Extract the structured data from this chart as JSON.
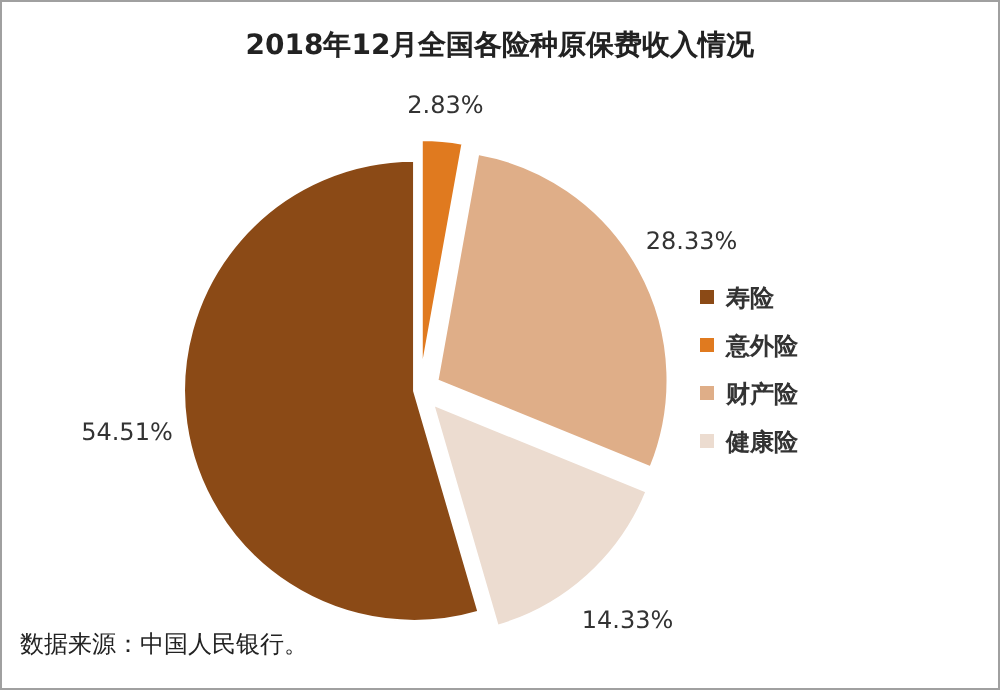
{
  "chart_data": {
    "type": "pie",
    "title": "2018年12月全国各险种原保费收入情况",
    "categories": [
      "寿险",
      "意外险",
      "财产险",
      "健康险"
    ],
    "values": [
      54.51,
      2.83,
      28.33,
      14.33
    ],
    "value_labels": [
      "54.51%",
      "2.83%",
      "28.33%",
      "14.33%"
    ],
    "colors": [
      "#8b4a16",
      "#e07a1f",
      "#dfae88",
      "#ecdcd0"
    ],
    "legend": "right",
    "annotations": [
      "数据来源：中国人民银行。"
    ]
  }
}
